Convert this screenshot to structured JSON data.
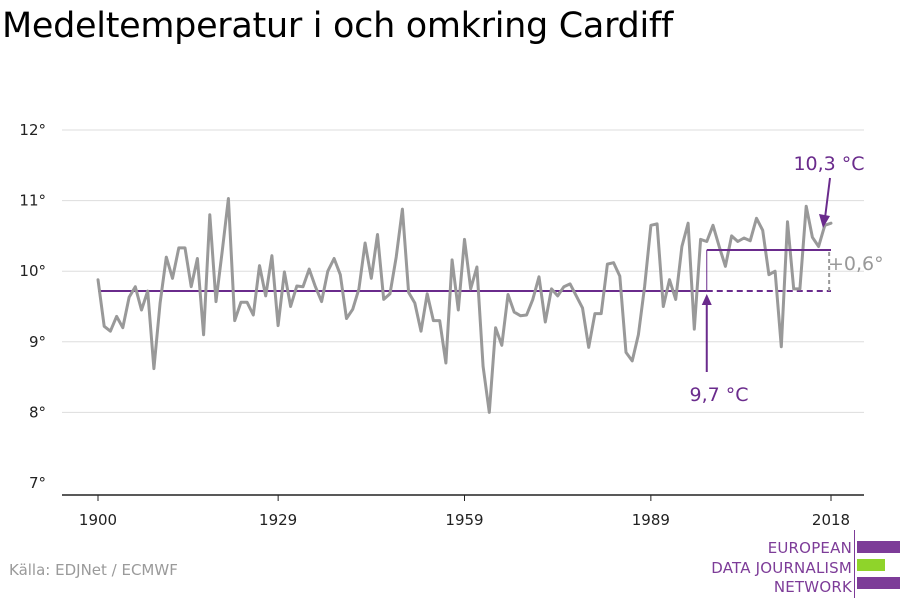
{
  "title": "Medeltemperatur i och omkring Cardiff",
  "source": "Källa: EDJNet / ECMWF",
  "logo": {
    "lines": [
      "EUROPEAN",
      "DATA JOURNALISM",
      "NETWORK"
    ],
    "colors": {
      "purple": "#7d3c98",
      "green": "#8fd42a"
    }
  },
  "colors": {
    "series": "#999999",
    "accent": "#6a2b8c",
    "grid": "#dddddd",
    "axis": "#222222",
    "diff": "#999999"
  },
  "chart_data": {
    "type": "line",
    "title": "Medeltemperatur i och omkring Cardiff",
    "xlim": [
      1900,
      2018
    ],
    "ylim": [
      7,
      12
    ],
    "x_ticks": [
      1900,
      1929,
      1959,
      1989,
      2018
    ],
    "y_ticks": [
      7,
      8,
      9,
      10,
      11,
      12
    ],
    "y_tick_labels": [
      "7°",
      "8°",
      "9°",
      "10°",
      "11°",
      "12°"
    ],
    "grid": true,
    "series": [
      {
        "x": [
          1900,
          1901,
          1902,
          1903,
          1904,
          1905,
          1906,
          1907,
          1908,
          1909,
          1910,
          1911,
          1912,
          1913,
          1914,
          1915,
          1916,
          1917,
          1918,
          1919,
          1920,
          1921,
          1922,
          1923,
          1924,
          1925,
          1926,
          1927,
          1928,
          1929,
          1930,
          1931,
          1932,
          1933,
          1934,
          1935,
          1936,
          1937,
          1938,
          1939,
          1940,
          1941,
          1942,
          1943,
          1944,
          1945,
          1946,
          1947,
          1948,
          1949,
          1950,
          1951,
          1952,
          1953,
          1954,
          1955,
          1956,
          1957,
          1958,
          1959,
          1960,
          1961,
          1962,
          1963,
          1964,
          1965,
          1966,
          1967,
          1968,
          1969,
          1970,
          1971,
          1972,
          1973,
          1974,
          1975,
          1976,
          1977,
          1978,
          1979,
          1980,
          1981,
          1982,
          1983,
          1984,
          1985,
          1986,
          1987,
          1988,
          1989,
          1990,
          1991,
          1992,
          1993,
          1994,
          1995,
          1996,
          1997,
          1998,
          1999,
          2000,
          2001,
          2002,
          2003,
          2004,
          2005,
          2006,
          2007,
          2008,
          2009,
          2010,
          2011,
          2012,
          2013,
          2014,
          2015,
          2016,
          2017,
          2018
        ],
        "values": [
          9.88,
          9.22,
          9.15,
          9.36,
          9.2,
          9.63,
          9.78,
          9.45,
          9.72,
          8.62,
          9.55,
          10.2,
          9.9,
          10.33,
          10.33,
          9.78,
          10.18,
          9.1,
          10.8,
          9.57,
          10.28,
          11.03,
          9.3,
          9.56,
          9.56,
          9.38,
          10.08,
          9.65,
          10.22,
          9.23,
          9.99,
          9.5,
          9.79,
          9.78,
          10.03,
          9.78,
          9.57,
          10.0,
          10.18,
          9.95,
          9.33,
          9.46,
          9.75,
          10.4,
          9.9,
          10.52,
          9.6,
          9.68,
          10.2,
          10.88,
          9.7,
          9.55,
          9.15,
          9.68,
          9.3,
          9.3,
          8.7,
          10.16,
          9.45,
          10.45,
          9.75,
          10.06,
          8.65,
          8.0,
          9.2,
          8.95,
          9.67,
          9.42,
          9.37,
          9.38,
          9.6,
          9.92,
          9.28,
          9.75,
          9.65,
          9.78,
          9.82,
          9.65,
          9.48,
          8.92,
          9.4,
          9.4,
          10.1,
          10.12,
          9.93,
          8.85,
          8.73,
          9.1,
          9.78,
          10.65,
          10.67,
          9.5,
          9.88,
          9.6,
          10.35,
          10.68,
          9.18,
          10.45,
          10.42,
          10.65,
          10.35,
          10.07,
          10.5,
          10.42,
          10.47,
          10.43,
          10.75,
          10.58,
          9.95,
          10.0,
          8.93,
          10.7,
          9.75,
          9.75,
          10.92,
          10.48,
          10.35,
          10.65,
          10.68
        ]
      }
    ],
    "annotations": {
      "baseline_label": "9,7 °C",
      "baseline_value": 9.72,
      "baseline_x": [
        1900,
        2018
      ],
      "recent_label": "10,3 °C",
      "recent_value": 10.3,
      "recent_x": [
        1989,
        2018
      ],
      "diff_label": "+0,6°"
    }
  }
}
